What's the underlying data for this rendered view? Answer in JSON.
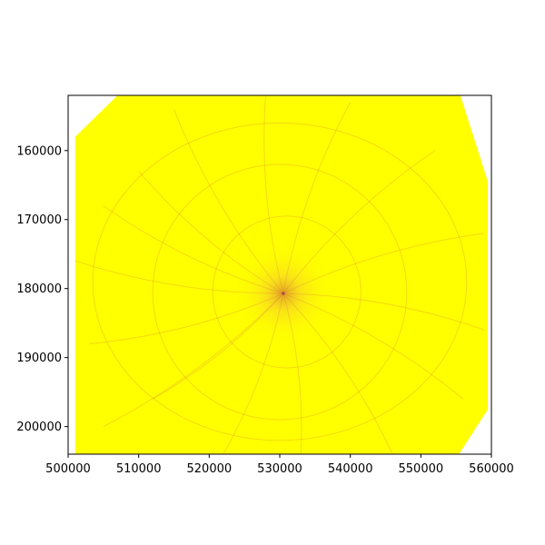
{
  "chart_data": {
    "type": "heatmap",
    "title": "",
    "xlabel": "",
    "ylabel": "",
    "xlim": [
      500000,
      560000
    ],
    "ylim": [
      204000,
      152000
    ],
    "y_inverted": true,
    "grid": false,
    "legend": "none",
    "x_ticks": [
      {
        "value": 500000,
        "label": "500000"
      },
      {
        "value": 510000,
        "label": "510000"
      },
      {
        "value": 520000,
        "label": "520000"
      },
      {
        "value": 530000,
        "label": "530000"
      },
      {
        "value": 540000,
        "label": "540000"
      },
      {
        "value": 550000,
        "label": "550000"
      },
      {
        "value": 560000,
        "label": "560000"
      }
    ],
    "y_ticks": [
      {
        "value": 160000,
        "label": "160000"
      },
      {
        "value": 170000,
        "label": "170000"
      },
      {
        "value": 180000,
        "label": "180000"
      },
      {
        "value": 190000,
        "label": "190000"
      },
      {
        "value": 200000,
        "label": "200000"
      }
    ],
    "fill_region": [
      [
        501000,
        158000
      ],
      [
        507000,
        152000
      ],
      [
        555600,
        152000
      ],
      [
        559500,
        164500
      ],
      [
        559500,
        197500
      ],
      [
        555400,
        204000
      ],
      [
        501000,
        204000
      ]
    ],
    "fill_color": "#ffff00",
    "feature_color": "#d87a3e",
    "center_hotspot": [
      530500,
      180700
    ],
    "rings": [
      {
        "cx": 531000,
        "cy": 180500,
        "rx": 10500,
        "ry": 11000
      },
      {
        "cx": 530000,
        "cy": 180500,
        "rx": 18000,
        "ry": 18500
      },
      {
        "cx": 530000,
        "cy": 179000,
        "rx": 26500,
        "ry": 23000
      }
    ],
    "radial_ends": [
      [
        501000,
        176000
      ],
      [
        503000,
        188000
      ],
      [
        505000,
        200000
      ],
      [
        510000,
        163000
      ],
      [
        515000,
        154000
      ],
      [
        522000,
        204000
      ],
      [
        528000,
        152000
      ],
      [
        533000,
        204000
      ],
      [
        540000,
        153000
      ],
      [
        546000,
        204000
      ],
      [
        552000,
        160000
      ],
      [
        559000,
        172000
      ],
      [
        559000,
        186000
      ],
      [
        556000,
        196000
      ],
      [
        512000,
        196000
      ],
      [
        505000,
        168000
      ]
    ]
  }
}
